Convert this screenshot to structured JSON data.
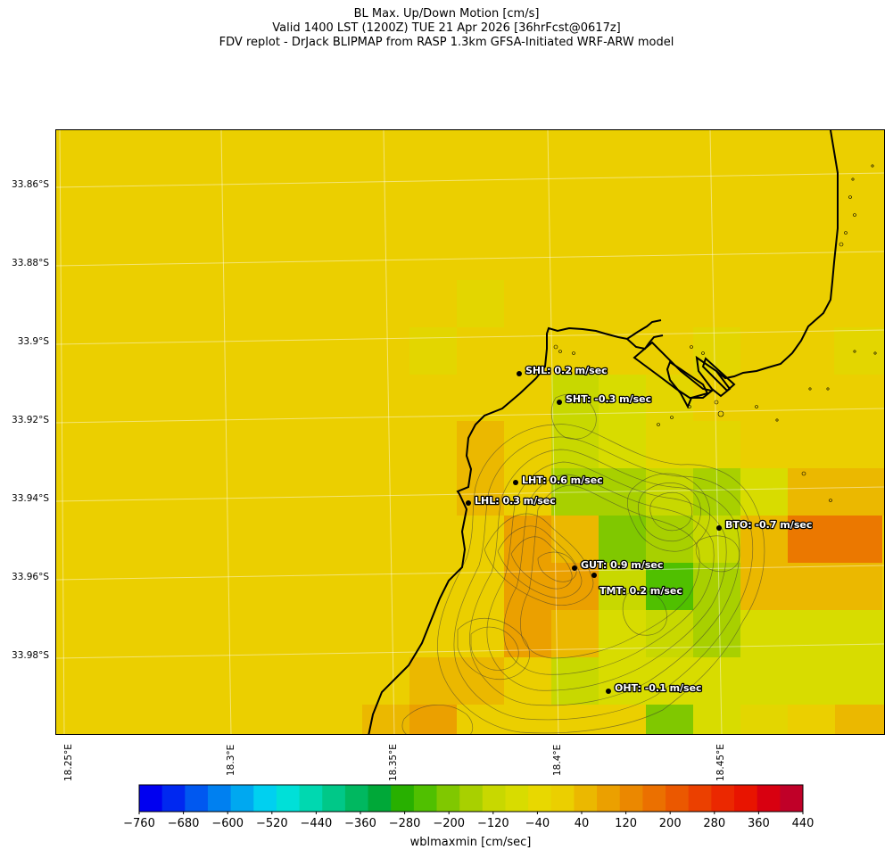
{
  "title_lines": [
    "BL Max. Up/Down Motion [cm/s]",
    "Valid 1400 LST (1200Z) TUE 21 Apr 2026 [36hrFcst@0617z]",
    "FDV replot - DrJack BLIPMAP from RASP 1.3km GFSA-Initiated WRF-ARW model"
  ],
  "lat_labels": [
    "33.86°S",
    "33.88°S",
    "33.9°S",
    "33.92°S",
    "33.94°S",
    "33.96°S",
    "33.98°S"
  ],
  "lon_labels": [
    "18.25°E",
    "18.3°E",
    "18.35°E",
    "18.4°E",
    "18.45°E"
  ],
  "stations": [
    {
      "code": "SHL",
      "label": "SHL: 0.2 m/sec"
    },
    {
      "code": "SHT",
      "label": "SHT: -0.3 m/sec"
    },
    {
      "code": "LHT",
      "label": "LHT: 0.6 m/sec"
    },
    {
      "code": "LHL",
      "label": "LHL: 0.3 m/sec"
    },
    {
      "code": "BTO",
      "label": "BTO: -0.7 m/sec"
    },
    {
      "code": "GUT",
      "label": "GUT: 0.9 m/sec"
    },
    {
      "code": "TMT",
      "label": "TMT: 0.2 m/sec"
    },
    {
      "code": "OHT",
      "label": "OHT: -0.1 m/sec"
    }
  ],
  "colorbar": {
    "label": "wblmaxmin [cm/sec]",
    "ticks": [
      "−760",
      "−680",
      "−600",
      "−520",
      "−440",
      "−360",
      "−280",
      "−200",
      "−120",
      "−40",
      "40",
      "120",
      "200",
      "280",
      "360",
      "440"
    ],
    "colors": [
      "#0000f0",
      "#0028f0",
      "#0058f0",
      "#0080f0",
      "#00a8f0",
      "#00d0f0",
      "#00e0d8",
      "#00d8b0",
      "#00c888",
      "#00b860",
      "#00a838",
      "#28b000",
      "#50c000",
      "#80c800",
      "#a8d000",
      "#c8d800",
      "#d8dc00",
      "#e8d800",
      "#ebcf00",
      "#ebb800",
      "#eba000",
      "#eb8800",
      "#eb7000",
      "#eb5800",
      "#eb4000",
      "#eb2800",
      "#e81400",
      "#d80010",
      "#c00028"
    ],
    "base_color": "#ebcf00"
  }
}
